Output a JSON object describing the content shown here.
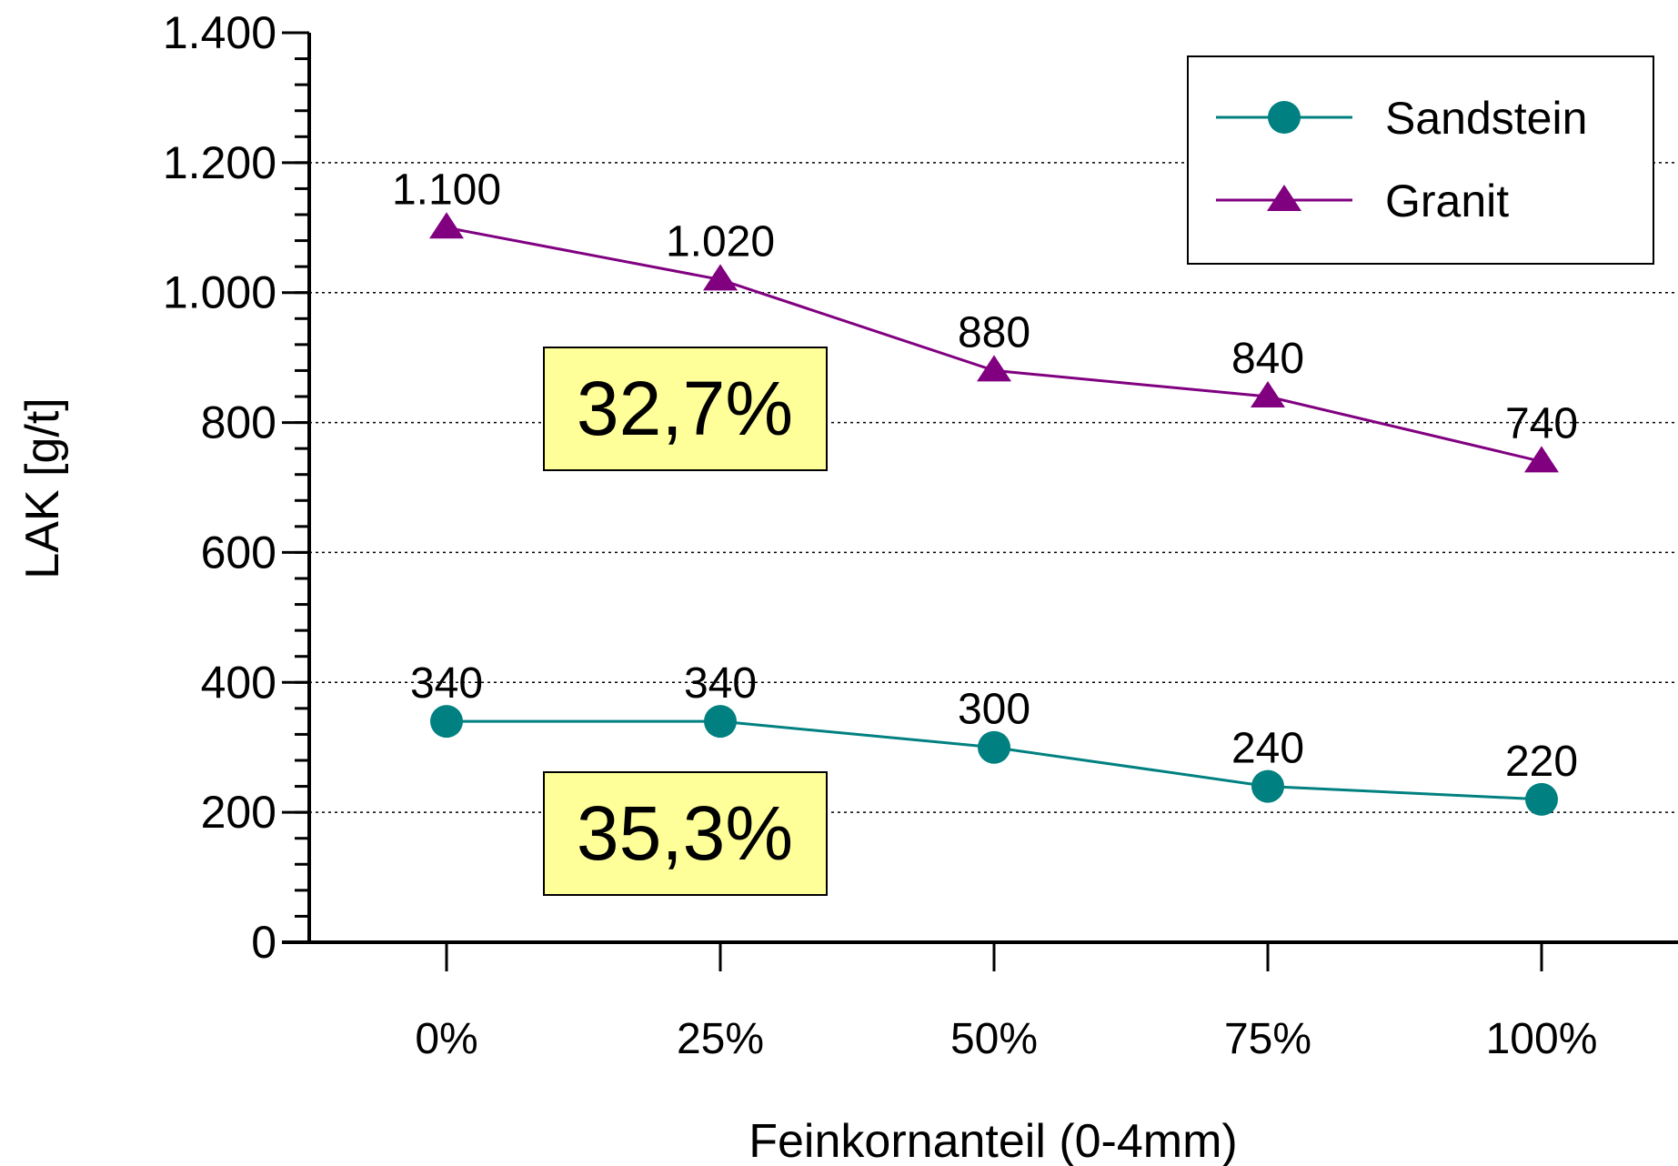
{
  "chart_data": {
    "type": "line",
    "categories": [
      "0%",
      "25%",
      "50%",
      "75%",
      "100%"
    ],
    "series": [
      {
        "name": "Sandstein",
        "values": [
          340,
          340,
          300,
          240,
          220
        ],
        "labels": [
          "340",
          "340",
          "300",
          "240",
          "220"
        ],
        "color": "#008080",
        "marker": "circle"
      },
      {
        "name": "Granit",
        "values": [
          1100,
          1020,
          880,
          840,
          740
        ],
        "labels": [
          "1.100",
          "1.020",
          "880",
          "840",
          "740"
        ],
        "color": "#800080",
        "marker": "triangle"
      }
    ],
    "xlabel": "Feinkornanteil (0-4mm)",
    "ylabel": "LAK [g/t]",
    "ylim": [
      0,
      1400
    ],
    "yticks": [
      {
        "value": 0,
        "label": "0"
      },
      {
        "value": 200,
        "label": "200"
      },
      {
        "value": 400,
        "label": "400"
      },
      {
        "value": 600,
        "label": "600"
      },
      {
        "value": 800,
        "label": "800"
      },
      {
        "value": 1000,
        "label": "1.000"
      },
      {
        "value": 1200,
        "label": "1.200"
      },
      {
        "value": 1400,
        "label": "1.400"
      }
    ],
    "grid": "horizontal dotted",
    "legend_position": "top-right",
    "annotations": [
      {
        "text": "32,7%",
        "series": "Granit",
        "background": "#ffff99"
      },
      {
        "text": "35,3%",
        "series": "Sandstein",
        "background": "#ffff99"
      }
    ]
  }
}
